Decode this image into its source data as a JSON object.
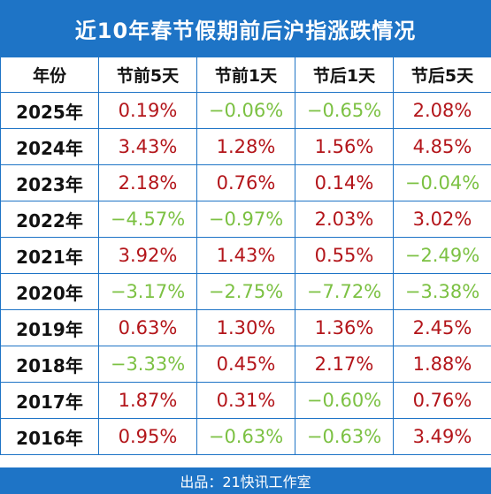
{
  "title": "近10年春节假期前后沪指涨跌情况",
  "columns": [
    "年份",
    "节前5天",
    "节前1天",
    "节后1天",
    "节后5天"
  ],
  "rows": [
    {
      "year": "2025年",
      "values": [
        "0.19%",
        "−0.06%",
        "−0.65%",
        "2.08%"
      ],
      "dir": [
        "up",
        "down",
        "down",
        "up"
      ]
    },
    {
      "year": "2024年",
      "values": [
        "3.43%",
        "1.28%",
        "1.56%",
        "4.85%"
      ],
      "dir": [
        "up",
        "up",
        "up",
        "up"
      ]
    },
    {
      "year": "2023年",
      "values": [
        "2.18%",
        "0.76%",
        "0.14%",
        "−0.04%"
      ],
      "dir": [
        "up",
        "up",
        "up",
        "down"
      ]
    },
    {
      "year": "2022年",
      "values": [
        "−4.57%",
        "−0.97%",
        "2.03%",
        "3.02%"
      ],
      "dir": [
        "down",
        "down",
        "up",
        "up"
      ]
    },
    {
      "year": "2021年",
      "values": [
        "3.92%",
        "1.43%",
        "0.55%",
        "−2.49%"
      ],
      "dir": [
        "up",
        "up",
        "up",
        "down"
      ]
    },
    {
      "year": "2020年",
      "values": [
        "−3.17%",
        "−2.75%",
        "−7.72%",
        "−3.38%"
      ],
      "dir": [
        "down",
        "down",
        "down",
        "down"
      ]
    },
    {
      "year": "2019年",
      "values": [
        "0.63%",
        "1.30%",
        "1.36%",
        "2.45%"
      ],
      "dir": [
        "up",
        "up",
        "up",
        "up"
      ]
    },
    {
      "year": "2018年",
      "values": [
        "−3.33%",
        "0.45%",
        "2.17%",
        "1.88%"
      ],
      "dir": [
        "down",
        "up",
        "up",
        "up"
      ]
    },
    {
      "year": "2017年",
      "values": [
        "1.87%",
        "0.31%",
        "−0.60%",
        "0.76%"
      ],
      "dir": [
        "up",
        "up",
        "down",
        "up"
      ]
    },
    {
      "year": "2016年",
      "values": [
        "0.95%",
        "−0.63%",
        "−0.63%",
        "3.49%"
      ],
      "dir": [
        "up",
        "down",
        "down",
        "up"
      ]
    }
  ],
  "footer": "出品：21快讯工作室",
  "colors": {
    "header_blue": "#1e74c6",
    "rise_red": "#b3151a",
    "fall_green": "#7cc143"
  }
}
